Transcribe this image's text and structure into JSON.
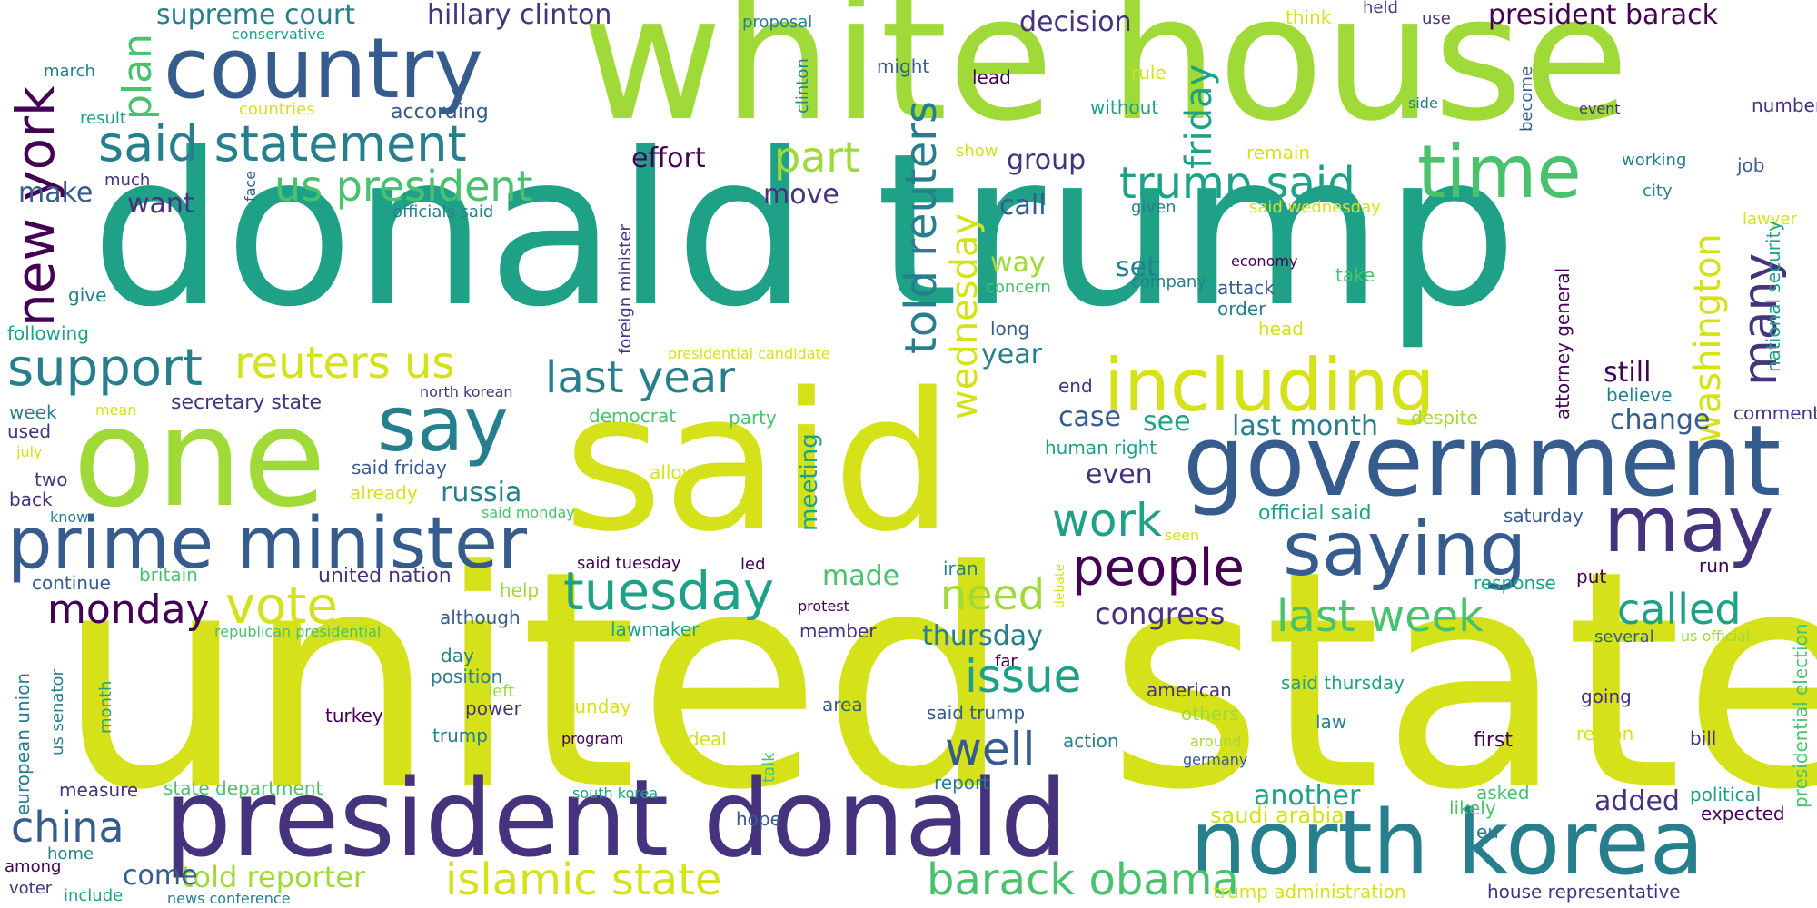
{
  "palette": {
    "c1": "#440154",
    "c2": "#46337e",
    "c3": "#365c8d",
    "c4": "#277f8e",
    "c5": "#1fa187",
    "c6": "#4ac16d",
    "c7": "#a0da39",
    "c8": "#d5e21a"
  },
  "words": [
    {
      "text": "united state",
      "color": "c8"
    },
    {
      "text": "donald trump",
      "color": "c5"
    },
    {
      "text": "white house",
      "color": "c7"
    },
    {
      "text": "said",
      "color": "c8"
    },
    {
      "text": "president donald",
      "color": "c2"
    },
    {
      "text": "one",
      "color": "c7"
    },
    {
      "text": "government",
      "color": "c3"
    },
    {
      "text": "country",
      "color": "c3"
    },
    {
      "text": "north korea",
      "color": "c4"
    },
    {
      "text": "prime minister",
      "color": "c3"
    },
    {
      "text": "including",
      "color": "c8"
    },
    {
      "text": "say",
      "color": "c4"
    },
    {
      "text": "saying",
      "color": "c3"
    },
    {
      "text": "may",
      "color": "c2"
    },
    {
      "text": "time",
      "color": "c6"
    },
    {
      "text": "tuesday",
      "color": "c5"
    },
    {
      "text": "people",
      "color": "c1"
    },
    {
      "text": "said statement",
      "color": "c4"
    },
    {
      "text": "support",
      "color": "c4"
    },
    {
      "text": "new york",
      "color": "c1"
    },
    {
      "text": "last year",
      "color": "c4"
    },
    {
      "text": "us president",
      "color": "c6"
    },
    {
      "text": "reuters us",
      "color": "c8"
    },
    {
      "text": "trump said",
      "color": "c5"
    },
    {
      "text": "islamic state",
      "color": "c8"
    },
    {
      "text": "barack obama",
      "color": "c6"
    },
    {
      "text": "last week",
      "color": "c6"
    },
    {
      "text": "vote",
      "color": "c8"
    },
    {
      "text": "monday",
      "color": "c1"
    },
    {
      "text": "china",
      "color": "c3"
    },
    {
      "text": "well",
      "color": "c3"
    },
    {
      "text": "called",
      "color": "c5"
    },
    {
      "text": "told reuters",
      "color": "c4"
    },
    {
      "text": "work",
      "color": "c5"
    },
    {
      "text": "issue",
      "color": "c5"
    },
    {
      "text": "need",
      "color": "c7"
    },
    {
      "text": "part",
      "color": "c7"
    },
    {
      "text": "washington",
      "color": "c8"
    },
    {
      "text": "many",
      "color": "c2"
    },
    {
      "text": "wednesday",
      "color": "c8"
    },
    {
      "text": "plan",
      "color": "c6"
    },
    {
      "text": "friday",
      "color": "c5"
    },
    {
      "text": "supreme court",
      "color": "c4"
    },
    {
      "text": "hillary clinton",
      "color": "c2"
    },
    {
      "text": "president barack",
      "color": "c1"
    },
    {
      "text": "decision",
      "color": "c2"
    },
    {
      "text": "told reporter",
      "color": "c7"
    },
    {
      "text": "make",
      "color": "c3"
    },
    {
      "text": "congress",
      "color": "c2"
    },
    {
      "text": "thursday",
      "color": "c4"
    },
    {
      "text": "last month",
      "color": "c4"
    },
    {
      "text": "change",
      "color": "c3"
    },
    {
      "text": "effort",
      "color": "c1"
    },
    {
      "text": "move",
      "color": "c2"
    },
    {
      "text": "want",
      "color": "c2"
    },
    {
      "text": "group",
      "color": "c2"
    },
    {
      "text": "call",
      "color": "c3"
    },
    {
      "text": "way",
      "color": "c7"
    },
    {
      "text": "set",
      "color": "c4"
    },
    {
      "text": "year",
      "color": "c4"
    },
    {
      "text": "still",
      "color": "c1"
    },
    {
      "text": "case",
      "color": "c3"
    },
    {
      "text": "see",
      "color": "c5"
    },
    {
      "text": "even",
      "color": "c2"
    },
    {
      "text": "russia",
      "color": "c4"
    },
    {
      "text": "meeting",
      "color": "c5"
    },
    {
      "text": "made",
      "color": "c6"
    },
    {
      "text": "another",
      "color": "c5"
    },
    {
      "text": "added",
      "color": "c2"
    },
    {
      "text": "come",
      "color": "c3"
    },
    {
      "text": "according",
      "color": "c3"
    },
    {
      "text": "secretary state",
      "color": "c2"
    },
    {
      "text": "united nation",
      "color": "c2"
    },
    {
      "text": "saudi arabia",
      "color": "c8"
    },
    {
      "text": "give",
      "color": "c4"
    },
    {
      "text": "following",
      "color": "c5"
    },
    {
      "text": "week",
      "color": "c4"
    },
    {
      "text": "used",
      "color": "c2"
    },
    {
      "text": "two",
      "color": "c2"
    },
    {
      "text": "back",
      "color": "c2"
    },
    {
      "text": "continue",
      "color": "c3"
    },
    {
      "text": "britain",
      "color": "c6"
    },
    {
      "text": "although",
      "color": "c3"
    },
    {
      "text": "republican presidential",
      "color": "c6"
    },
    {
      "text": "lawmaker",
      "color": "c5"
    },
    {
      "text": "member",
      "color": "c2"
    },
    {
      "text": "day",
      "color": "c4"
    },
    {
      "text": "position",
      "color": "c4"
    },
    {
      "text": "left",
      "color": "c7"
    },
    {
      "text": "power",
      "color": "c2"
    },
    {
      "text": "turkey",
      "color": "c1"
    },
    {
      "text": "trump",
      "color": "c4"
    },
    {
      "text": "sunday",
      "color": "c8"
    },
    {
      "text": "area",
      "color": "c3"
    },
    {
      "text": "said trump",
      "color": "c3"
    },
    {
      "text": "american",
      "color": "c2"
    },
    {
      "text": "others",
      "color": "c7"
    },
    {
      "text": "law",
      "color": "c4"
    },
    {
      "text": "first",
      "color": "c1"
    },
    {
      "text": "region",
      "color": "c8"
    },
    {
      "text": "going",
      "color": "c2"
    },
    {
      "text": "bill",
      "color": "c2"
    },
    {
      "text": "program",
      "color": "c1"
    },
    {
      "text": "deal",
      "color": "c8"
    },
    {
      "text": "action",
      "color": "c4"
    },
    {
      "text": "report",
      "color": "c4"
    },
    {
      "text": "germany",
      "color": "c3"
    },
    {
      "text": "around",
      "color": "c7"
    },
    {
      "text": "asked",
      "color": "c6"
    },
    {
      "text": "likely",
      "color": "c6"
    },
    {
      "text": "eu",
      "color": "c4"
    },
    {
      "text": "political",
      "color": "c5"
    },
    {
      "text": "expected",
      "color": "c1"
    },
    {
      "text": "measure",
      "color": "c2"
    },
    {
      "text": "state department",
      "color": "c6"
    },
    {
      "text": "south korea",
      "color": "c5"
    },
    {
      "text": "hope",
      "color": "c3"
    },
    {
      "text": "among",
      "color": "c1"
    },
    {
      "text": "home",
      "color": "c4"
    },
    {
      "text": "voter",
      "color": "c2"
    },
    {
      "text": "include",
      "color": "c5"
    },
    {
      "text": "news conference",
      "color": "c4"
    },
    {
      "text": "trump administration",
      "color": "c8"
    },
    {
      "text": "house representative",
      "color": "c2"
    },
    {
      "text": "proposal",
      "color": "c4"
    },
    {
      "text": "might",
      "color": "c3"
    },
    {
      "text": "lead",
      "color": "c1"
    },
    {
      "text": "rule",
      "color": "c8"
    },
    {
      "text": "without",
      "color": "c5"
    },
    {
      "text": "think",
      "color": "c8"
    },
    {
      "text": "held",
      "color": "c2"
    },
    {
      "text": "use",
      "color": "c2"
    },
    {
      "text": "become",
      "color": "c3"
    },
    {
      "text": "event",
      "color": "c2"
    },
    {
      "text": "side",
      "color": "c4"
    },
    {
      "text": "number",
      "color": "c2"
    },
    {
      "text": "remain",
      "color": "c8"
    },
    {
      "text": "working",
      "color": "c4"
    },
    {
      "text": "job",
      "color": "c3"
    },
    {
      "text": "city",
      "color": "c4"
    },
    {
      "text": "lawyer",
      "color": "c8"
    },
    {
      "text": "show",
      "color": "c8"
    },
    {
      "text": "given",
      "color": "c4"
    },
    {
      "text": "said wednesday",
      "color": "c8"
    },
    {
      "text": "economy",
      "color": "c1"
    },
    {
      "text": "company",
      "color": "c4"
    },
    {
      "text": "concern",
      "color": "c6"
    },
    {
      "text": "attack",
      "color": "c3"
    },
    {
      "text": "order",
      "color": "c4"
    },
    {
      "text": "take",
      "color": "c6"
    },
    {
      "text": "long",
      "color": "c3"
    },
    {
      "text": "head",
      "color": "c8"
    },
    {
      "text": "end",
      "color": "c2"
    },
    {
      "text": "human right",
      "color": "c5"
    },
    {
      "text": "despite",
      "color": "c7"
    },
    {
      "text": "believe",
      "color": "c4"
    },
    {
      "text": "comment",
      "color": "c2"
    },
    {
      "text": "official said",
      "color": "c5"
    },
    {
      "text": "saturday",
      "color": "c3"
    },
    {
      "text": "seen",
      "color": "c8"
    },
    {
      "text": "response",
      "color": "c5"
    },
    {
      "text": "put",
      "color": "c1"
    },
    {
      "text": "run",
      "color": "c1"
    },
    {
      "text": "iran",
      "color": "c4"
    },
    {
      "text": "protest",
      "color": "c1"
    },
    {
      "text": "said tuesday",
      "color": "c1"
    },
    {
      "text": "led",
      "color": "c1"
    },
    {
      "text": "help",
      "color": "c7"
    },
    {
      "text": "several",
      "color": "c3"
    },
    {
      "text": "us official",
      "color": "c7"
    },
    {
      "text": "far",
      "color": "c1"
    },
    {
      "text": "march",
      "color": "c4"
    },
    {
      "text": "much",
      "color": "c2"
    },
    {
      "text": "result",
      "color": "c5"
    },
    {
      "text": "countries",
      "color": "c8"
    },
    {
      "text": "conservative",
      "color": "c5"
    },
    {
      "text": "officials said",
      "color": "c4"
    },
    {
      "text": "presidential candidate",
      "color": "c8"
    },
    {
      "text": "north korean",
      "color": "c2"
    },
    {
      "text": "mean",
      "color": "c8"
    },
    {
      "text": "july",
      "color": "c8"
    },
    {
      "text": "know",
      "color": "c4"
    },
    {
      "text": "said friday",
      "color": "c3"
    },
    {
      "text": "already",
      "color": "c8"
    },
    {
      "text": "said monday",
      "color": "c6"
    },
    {
      "text": "allow",
      "color": "c8"
    },
    {
      "text": "democrat",
      "color": "c6"
    },
    {
      "text": "party",
      "color": "c6"
    },
    {
      "text": "said thursday",
      "color": "c5"
    },
    {
      "text": "clinton",
      "color": "c4"
    },
    {
      "text": "face",
      "color": "c3"
    },
    {
      "text": "foreign minister",
      "color": "c2"
    },
    {
      "text": "debate",
      "color": "c8"
    },
    {
      "text": "talk",
      "color": "c6"
    },
    {
      "text": "month",
      "color": "c5"
    },
    {
      "text": "us senator",
      "color": "c4"
    },
    {
      "text": "european union",
      "color": "c4"
    },
    {
      "text": "attorney general",
      "color": "c1"
    },
    {
      "text": "national security",
      "color": "c5"
    },
    {
      "text": "presidential election",
      "color": "c6"
    }
  ]
}
